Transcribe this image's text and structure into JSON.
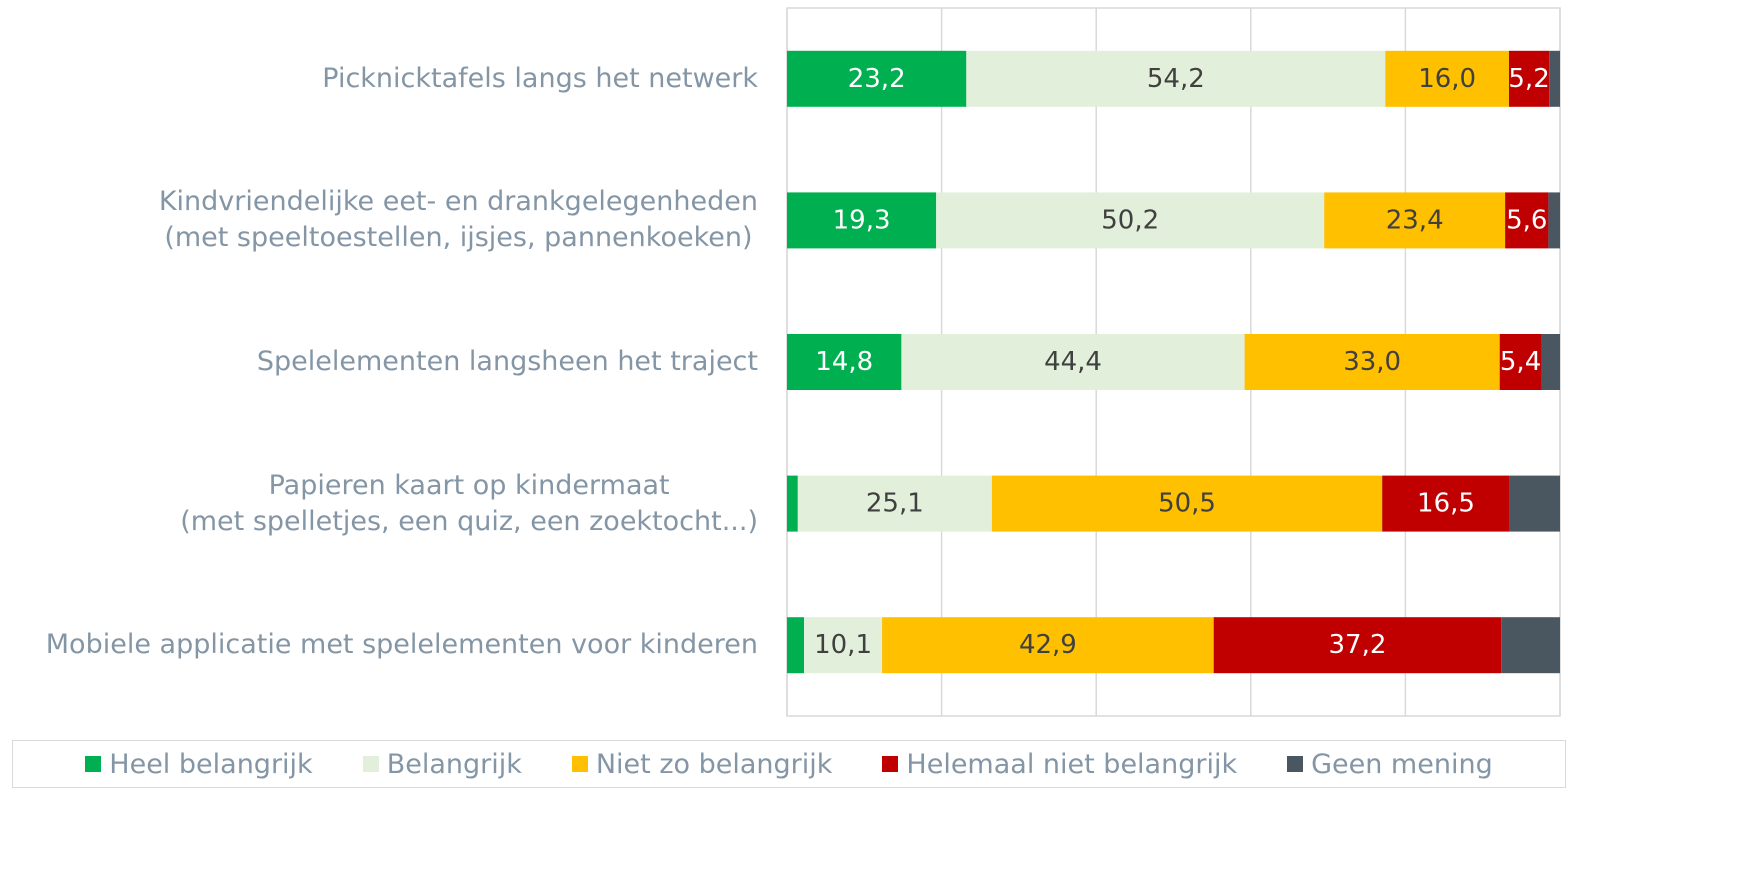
{
  "chart_data": {
    "type": "stacked_bar_horizontal",
    "categories": [
      "Picknicktafels langs het netwerk",
      "Kindvriendelijke eet- en drankgelegenheden\n(met speeltoestellen, ijsjes, pannenkoeken)",
      "Spelelementen langsheen het traject",
      "Papieren kaart op kindermaat\n(met spelletjes, een quiz, een zoektocht...)",
      "Mobiele applicatie met spelelementen voor kinderen"
    ],
    "series": [
      {
        "name": "Heel belangrijk",
        "color": "#00b050",
        "values": [
          23.2,
          19.3,
          14.8,
          1.4,
          2.2
        ],
        "value_labels": [
          "23,2",
          "19,3",
          "14,8",
          null,
          null
        ]
      },
      {
        "name": "Belangrijk",
        "color": "#e2efda",
        "values": [
          54.2,
          50.2,
          44.4,
          25.1,
          10.1
        ],
        "value_labels": [
          "54,2",
          "50,2",
          "44,4",
          "25,1",
          "10,1"
        ]
      },
      {
        "name": "Niet zo belangrijk",
        "color": "#ffc000",
        "values": [
          16.0,
          23.4,
          33.0,
          50.5,
          42.9
        ],
        "value_labels": [
          "16,0",
          "23,4",
          "33,0",
          "50,5",
          "42,9"
        ]
      },
      {
        "name": "Helemaal niet belangrijk",
        "color": "#c00000",
        "values": [
          5.2,
          5.6,
          5.4,
          16.5,
          37.2
        ],
        "value_labels": [
          "5,2",
          "5,6",
          "5,4",
          "16,5",
          "37,2"
        ]
      },
      {
        "name": "Geen mening",
        "color": "#4b5760",
        "values": [
          1.4,
          1.5,
          2.4,
          6.5,
          7.6
        ],
        "value_labels": [
          null,
          null,
          null,
          null,
          null
        ]
      }
    ],
    "xlim": [
      0,
      100
    ],
    "xticks": [
      0,
      20,
      40,
      60,
      80,
      100
    ],
    "grid": true,
    "legend": "bottom"
  }
}
